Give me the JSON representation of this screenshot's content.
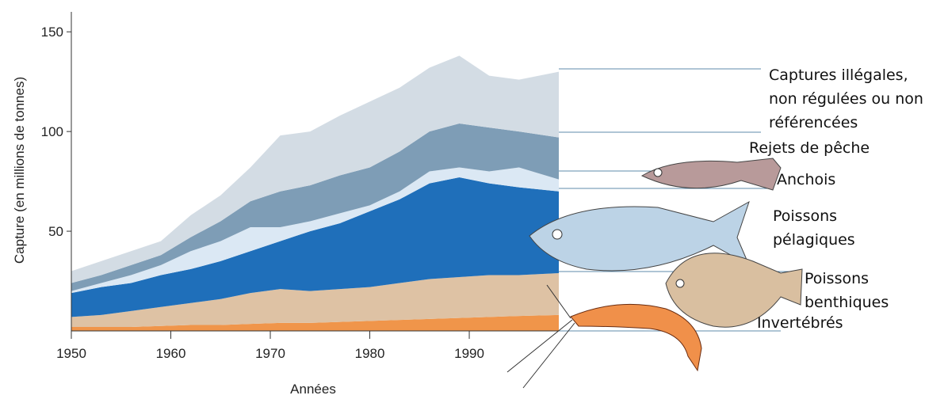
{
  "chart_data": {
    "type": "stacked_area",
    "x_label": "Années",
    "y_label": "Capture (en millions de tonnes)",
    "x": [
      1950,
      1953,
      1956,
      1959,
      1962,
      1965,
      1968,
      1971,
      1974,
      1977,
      1980,
      1983,
      1986,
      1989,
      1992,
      1995,
      1999
    ],
    "xlim": [
      1950,
      1999
    ],
    "xticks": [
      1950,
      1960,
      1970,
      1980,
      1990
    ],
    "ylim": [
      0,
      160
    ],
    "yticks": [
      50,
      100,
      150
    ],
    "series": [
      {
        "name": "Invertébrés",
        "color": "#f0954a",
        "values": [
          2,
          2,
          2,
          2.5,
          3,
          3,
          3.5,
          4,
          4,
          4.5,
          5,
          5.5,
          6,
          6.5,
          7,
          7.5,
          8
        ]
      },
      {
        "name": "Poissons benthiques",
        "color": "#dec2a4",
        "values": [
          5,
          6,
          8,
          9.5,
          11,
          13,
          15.5,
          17,
          16,
          16.5,
          17,
          18.5,
          20,
          20.5,
          21,
          20.5,
          21
        ]
      },
      {
        "name": "Poissons pélagiques",
        "color": "#1f6fba",
        "values": [
          12,
          14,
          14,
          16,
          17,
          19,
          21,
          24,
          30,
          33,
          38,
          42,
          48,
          50,
          46,
          44,
          41
        ]
      },
      {
        "name": "Anchois",
        "color": "#dbe8f4",
        "values": [
          1,
          2,
          4,
          5,
          9,
          10,
          12,
          7,
          5,
          5,
          3,
          4,
          6,
          5,
          6,
          10,
          6
        ]
      },
      {
        "name": "Rejets de pêche",
        "color": "#7e9db6",
        "values": [
          4,
          4,
          5,
          5,
          7,
          10,
          13,
          18,
          18,
          19,
          19,
          20,
          20,
          22,
          22,
          18,
          21
        ]
      },
      {
        "name": "Captures illégales, non régulées ou non référencées",
        "color": "#d3dce4",
        "values": [
          6,
          7,
          7,
          7,
          11,
          13,
          17,
          28,
          27,
          30,
          33,
          32,
          32,
          34,
          26,
          26,
          33
        ]
      }
    ]
  }
}
